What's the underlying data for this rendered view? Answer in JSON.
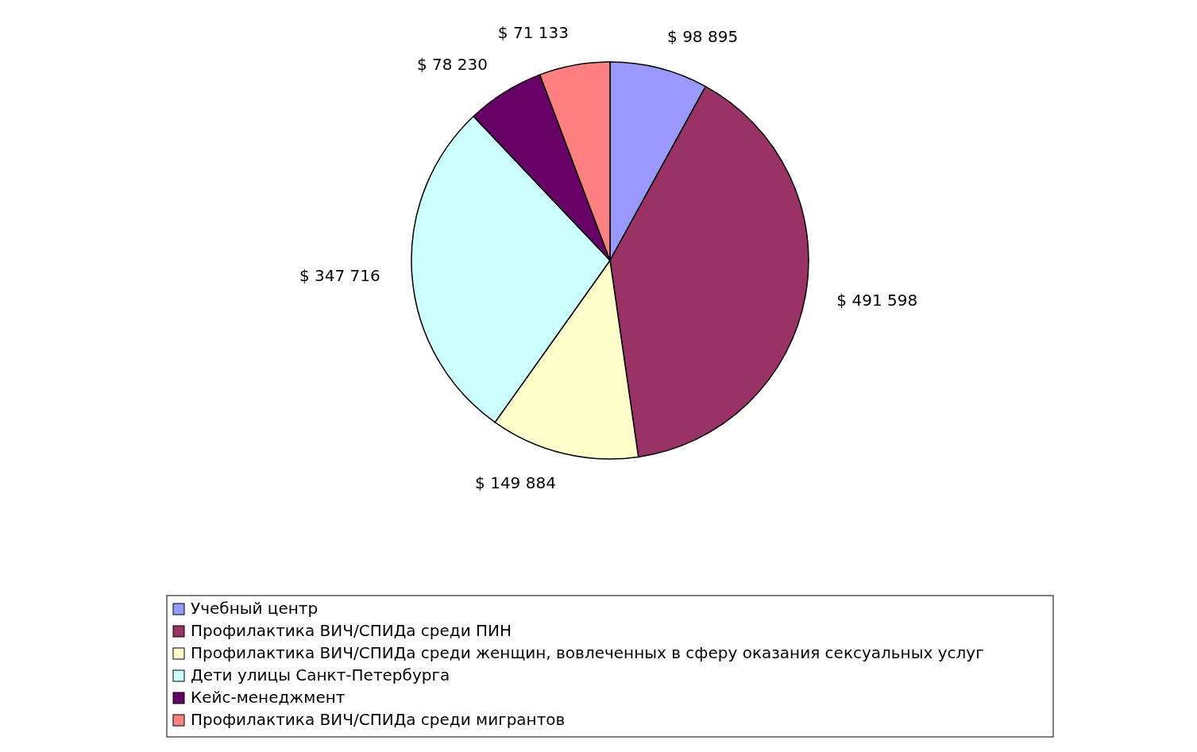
{
  "chart_data": {
    "type": "pie",
    "categories": [
      "Учебный центр",
      "Профилактика ВИЧ/СПИДа среди ПИН",
      "Профилактика ВИЧ/СПИДа среди женщин, вовлеченных в сферу оказания сексуальных услуг",
      "Дети улицы Санкт-Петербурга",
      "Кейс-менеджмент",
      "Профилактика ВИЧ/СПИДа среди мигрантов"
    ],
    "values": [
      98895,
      491598,
      149884,
      347716,
      78230,
      71133
    ],
    "value_labels": [
      "$ 98 895",
      "$ 491 598",
      "$ 149 884",
      "$ 347 716",
      "$ 78 230",
      "$ 71 133"
    ],
    "colors": [
      "#9999ff",
      "#993366",
      "#ffffcc",
      "#ccffff",
      "#660066",
      "#ff8080"
    ],
    "legend": "bottom"
  }
}
